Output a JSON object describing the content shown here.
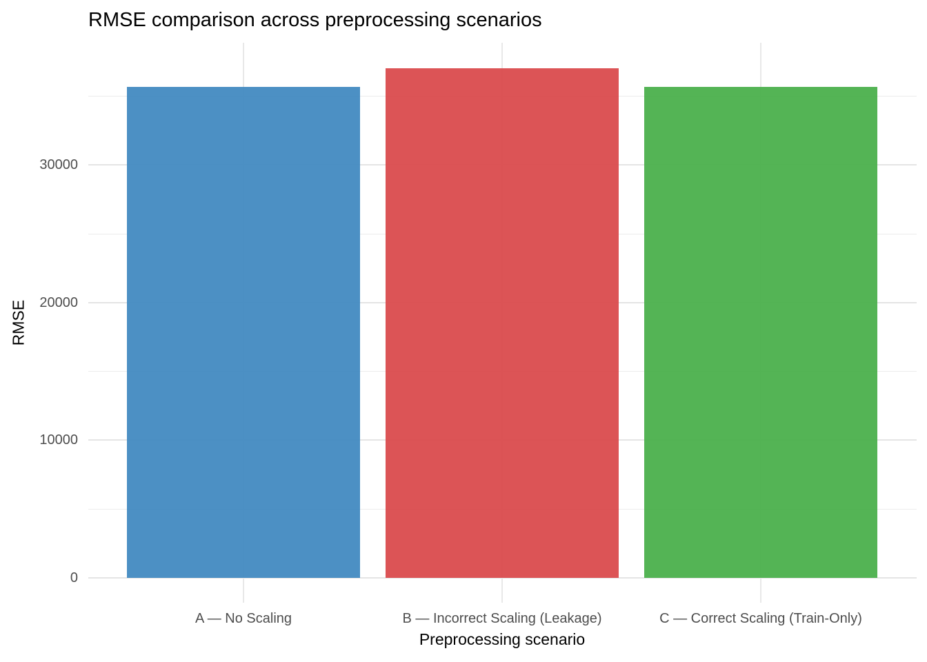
{
  "title": "RMSE comparison across preprocessing scenarios",
  "axes": {
    "x_title": "Preprocessing scenario",
    "y_title": "RMSE",
    "y_tick_labels": [
      "0",
      "10000",
      "20000",
      "30000"
    ],
    "x_tick_labels": [
      "A — No Scaling",
      "B — Incorrect Scaling (Leakage)",
      "C — Correct Scaling (Train-Only)"
    ]
  },
  "chart_data": {
    "type": "bar",
    "title": "RMSE comparison across preprocessing scenarios",
    "xlabel": "Preprocessing scenario",
    "ylabel": "RMSE",
    "categories": [
      "A — No Scaling",
      "B — Incorrect Scaling (Leakage)",
      "C — Correct Scaling (Train-Only)"
    ],
    "values": [
      35650,
      37000,
      35640
    ],
    "bar_colors": [
      "#4189C0",
      "#DA494B",
      "#49AF4A"
    ],
    "bar_colors_rendered": [
      "#4C90C4",
      "#DC5456",
      "#54B455"
    ],
    "ylim": [
      -1850,
      38800
    ],
    "y_major_ticks": [
      0,
      10000,
      20000,
      30000
    ],
    "y_minor_ticks": [
      5000,
      15000,
      25000,
      35000
    ],
    "grid": "major+minor, horizontal majors/minors and vertical major at each category center",
    "legend": "none",
    "panel_background": "#FFFFFF",
    "grid_color_major": "#E4E4E4",
    "grid_color_minor": "#ECECEC",
    "tick_text_color": "#4D4D4D"
  }
}
